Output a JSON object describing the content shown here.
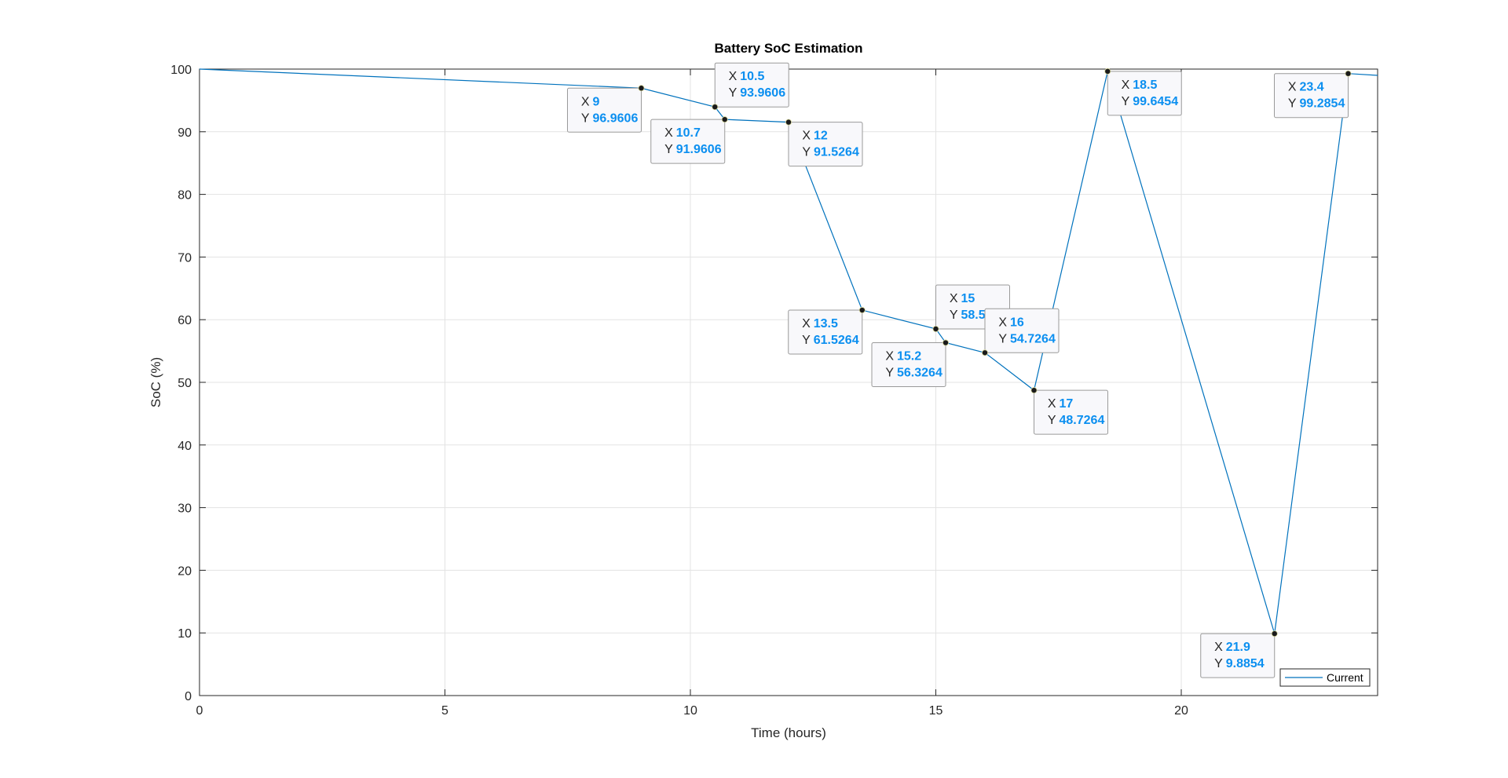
{
  "chart_data": {
    "type": "line",
    "title": "Battery SoC Estimation",
    "xlabel": "Time (hours)",
    "ylabel": "SoC (%)",
    "xlim": [
      0,
      24
    ],
    "ylim": [
      0,
      100
    ],
    "xticks": [
      0,
      5,
      10,
      15,
      20
    ],
    "yticks": [
      0,
      10,
      20,
      30,
      40,
      50,
      60,
      70,
      80,
      90,
      100
    ],
    "grid": true,
    "legend_location": "bottom-right",
    "series": [
      {
        "name": "Current",
        "color": "#0072bd",
        "x": [
          0,
          9,
          10.5,
          10.7,
          12,
          13.5,
          15,
          15.2,
          16,
          17,
          18.5,
          21.9,
          23.4,
          24
        ],
        "y": [
          100,
          96.9606,
          93.9606,
          91.9606,
          91.5264,
          61.5264,
          58.5264,
          56.3264,
          54.7264,
          48.7264,
          99.6454,
          9.8854,
          99.2854,
          99.0
        ]
      }
    ],
    "datatips": [
      {
        "x_label": "X",
        "y_label": "Y",
        "x": "9",
        "y": "96.9606",
        "side": "below-left"
      },
      {
        "x_label": "X",
        "y_label": "Y",
        "x": "10.5",
        "y": "93.9606",
        "side": "above-right"
      },
      {
        "x_label": "X",
        "y_label": "Y",
        "x": "10.7",
        "y": "91.9606",
        "side": "below-left"
      },
      {
        "x_label": "X",
        "y_label": "Y",
        "x": "12",
        "y": "91.5264",
        "side": "below-right"
      },
      {
        "x_label": "X",
        "y_label": "Y",
        "x": "13.5",
        "y": "61.5264",
        "side": "below-left"
      },
      {
        "x_label": "X",
        "y_label": "Y",
        "x": "15",
        "y": "58.52",
        "side": "above-right"
      },
      {
        "x_label": "X",
        "y_label": "Y",
        "x": "15.2",
        "y": "56.3264",
        "side": "below-left"
      },
      {
        "x_label": "X",
        "y_label": "Y",
        "x": "16",
        "y": "54.7264",
        "side": "above-right"
      },
      {
        "x_label": "X",
        "y_label": "Y",
        "x": "17",
        "y": "48.7264",
        "side": "below-right"
      },
      {
        "x_label": "X",
        "y_label": "Y",
        "x": "18.5",
        "y": "99.6454",
        "side": "below-right"
      },
      {
        "x_label": "X",
        "y_label": "Y",
        "x": "21.9",
        "y": "9.8854",
        "side": "below-left"
      },
      {
        "x_label": "X",
        "y_label": "Y",
        "x": "23.4",
        "y": "99.2854",
        "side": "below-left"
      }
    ],
    "tip_value_color": "#0b8ff0"
  }
}
